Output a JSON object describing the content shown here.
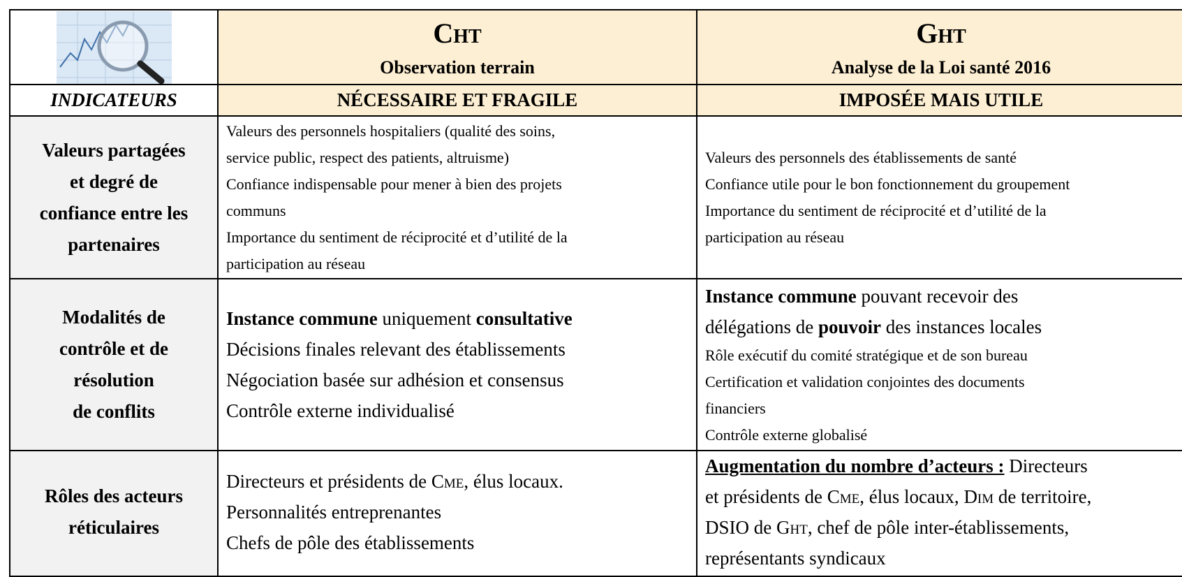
{
  "header": {
    "cht_title": "Cht",
    "cht_subtitle": "Observation terrain",
    "ght_title": "Ght",
    "ght_subtitle": "Analyse de la Loi santé 2016"
  },
  "indicators_row": [
    "INDICATEURS",
    "NÉCESSAIRE ET FRAGILE",
    "IMPOSÉE MAIS UTILE"
  ],
  "rows": [
    {
      "label": [
        "Valeurs partagées",
        "et degré de",
        "confiance entre les",
        "partenaires"
      ],
      "cht": [
        "Valeurs des personnels hospitaliers (qualité des soins,",
        "service public, respect des patients, altruisme)",
        "Confiance indispensable pour mener à bien des projets",
        "communs",
        "Importance du sentiment de réciprocité et d’utilité de la",
        "participation au réseau"
      ],
      "ght": [
        "Valeurs des personnels des établissements de santé",
        "Confiance utile pour le bon fonctionnement du groupement",
        "Importance du sentiment de réciprocité et d’utilité de la",
        "participation au réseau"
      ]
    },
    {
      "label": [
        "Modalités de",
        "contrôle et de",
        "résolution",
        "de conflits"
      ],
      "cht": [
        [
          "Instance commune",
          " uniquement ",
          "consultative"
        ],
        "Décisions finales relevant des établissements",
        "Négociation basée sur adhésion et consensus",
        "Contrôle externe individualisé"
      ],
      "ght": [
        [
          "Instance commune",
          " pouvant recevoir des"
        ],
        [
          "délégations de ",
          "pouvoir",
          " des instances locales"
        ],
        "Rôle exécutif du comité stratégique et de son bureau",
        "Certification et validation conjointes des documents",
        "financiers",
        "Contrôle externe globalisé"
      ]
    },
    {
      "label": [
        "Rôles des acteurs",
        "réticulaires"
      ],
      "cht": [
        [
          "Directeurs et présidents de ",
          "Cme",
          ", élus locaux."
        ],
        "Personnalités entreprenantes",
        "Chefs de pôle des établissements"
      ],
      "ght": [
        [
          "Augmentation du nombre d’acteurs :",
          " Directeurs"
        ],
        [
          "et présidents de ",
          "Cme",
          ", élus locaux, ",
          "Dim",
          " de territoire,"
        ],
        [
          "DSIO de ",
          "Ght",
          ", chef de pôle inter-établissements,"
        ],
        "représentants syndicaux"
      ]
    }
  ]
}
